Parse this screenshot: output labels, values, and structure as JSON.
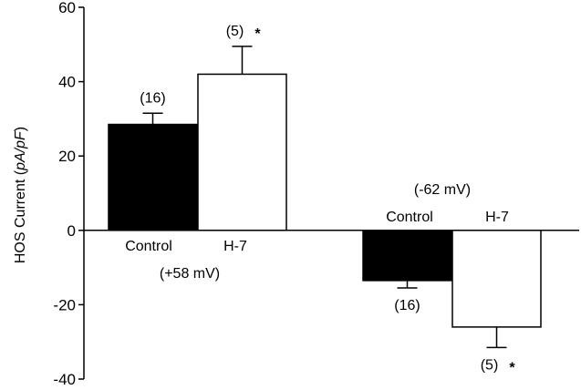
{
  "chart_data": {
    "type": "bar",
    "ylabel_parts": [
      "HOS Current (",
      "pA/pF",
      ")"
    ],
    "ylim": [
      -40,
      60
    ],
    "yticks": [
      -40,
      -20,
      0,
      20,
      40,
      60
    ],
    "grid": false,
    "groups": [
      {
        "condition": "(+58 mV)",
        "bars": [
          {
            "category": "Control",
            "value": 28.5,
            "error": 3.0,
            "n_label": "(16)",
            "star": "",
            "fill": "#000000"
          },
          {
            "category": "H-7",
            "value": 42.0,
            "error": 7.5,
            "n_label": "(5)",
            "star": "*",
            "fill": "#ffffff"
          }
        ]
      },
      {
        "condition": "(-62 mV)",
        "bars": [
          {
            "category": "Control",
            "value": -13.5,
            "error": 2.0,
            "n_label": "(16)",
            "star": "",
            "fill": "#000000"
          },
          {
            "category": "H-7",
            "value": -26.0,
            "error": 5.5,
            "n_label": "(5)",
            "star": "*",
            "fill": "#ffffff"
          }
        ]
      }
    ]
  }
}
